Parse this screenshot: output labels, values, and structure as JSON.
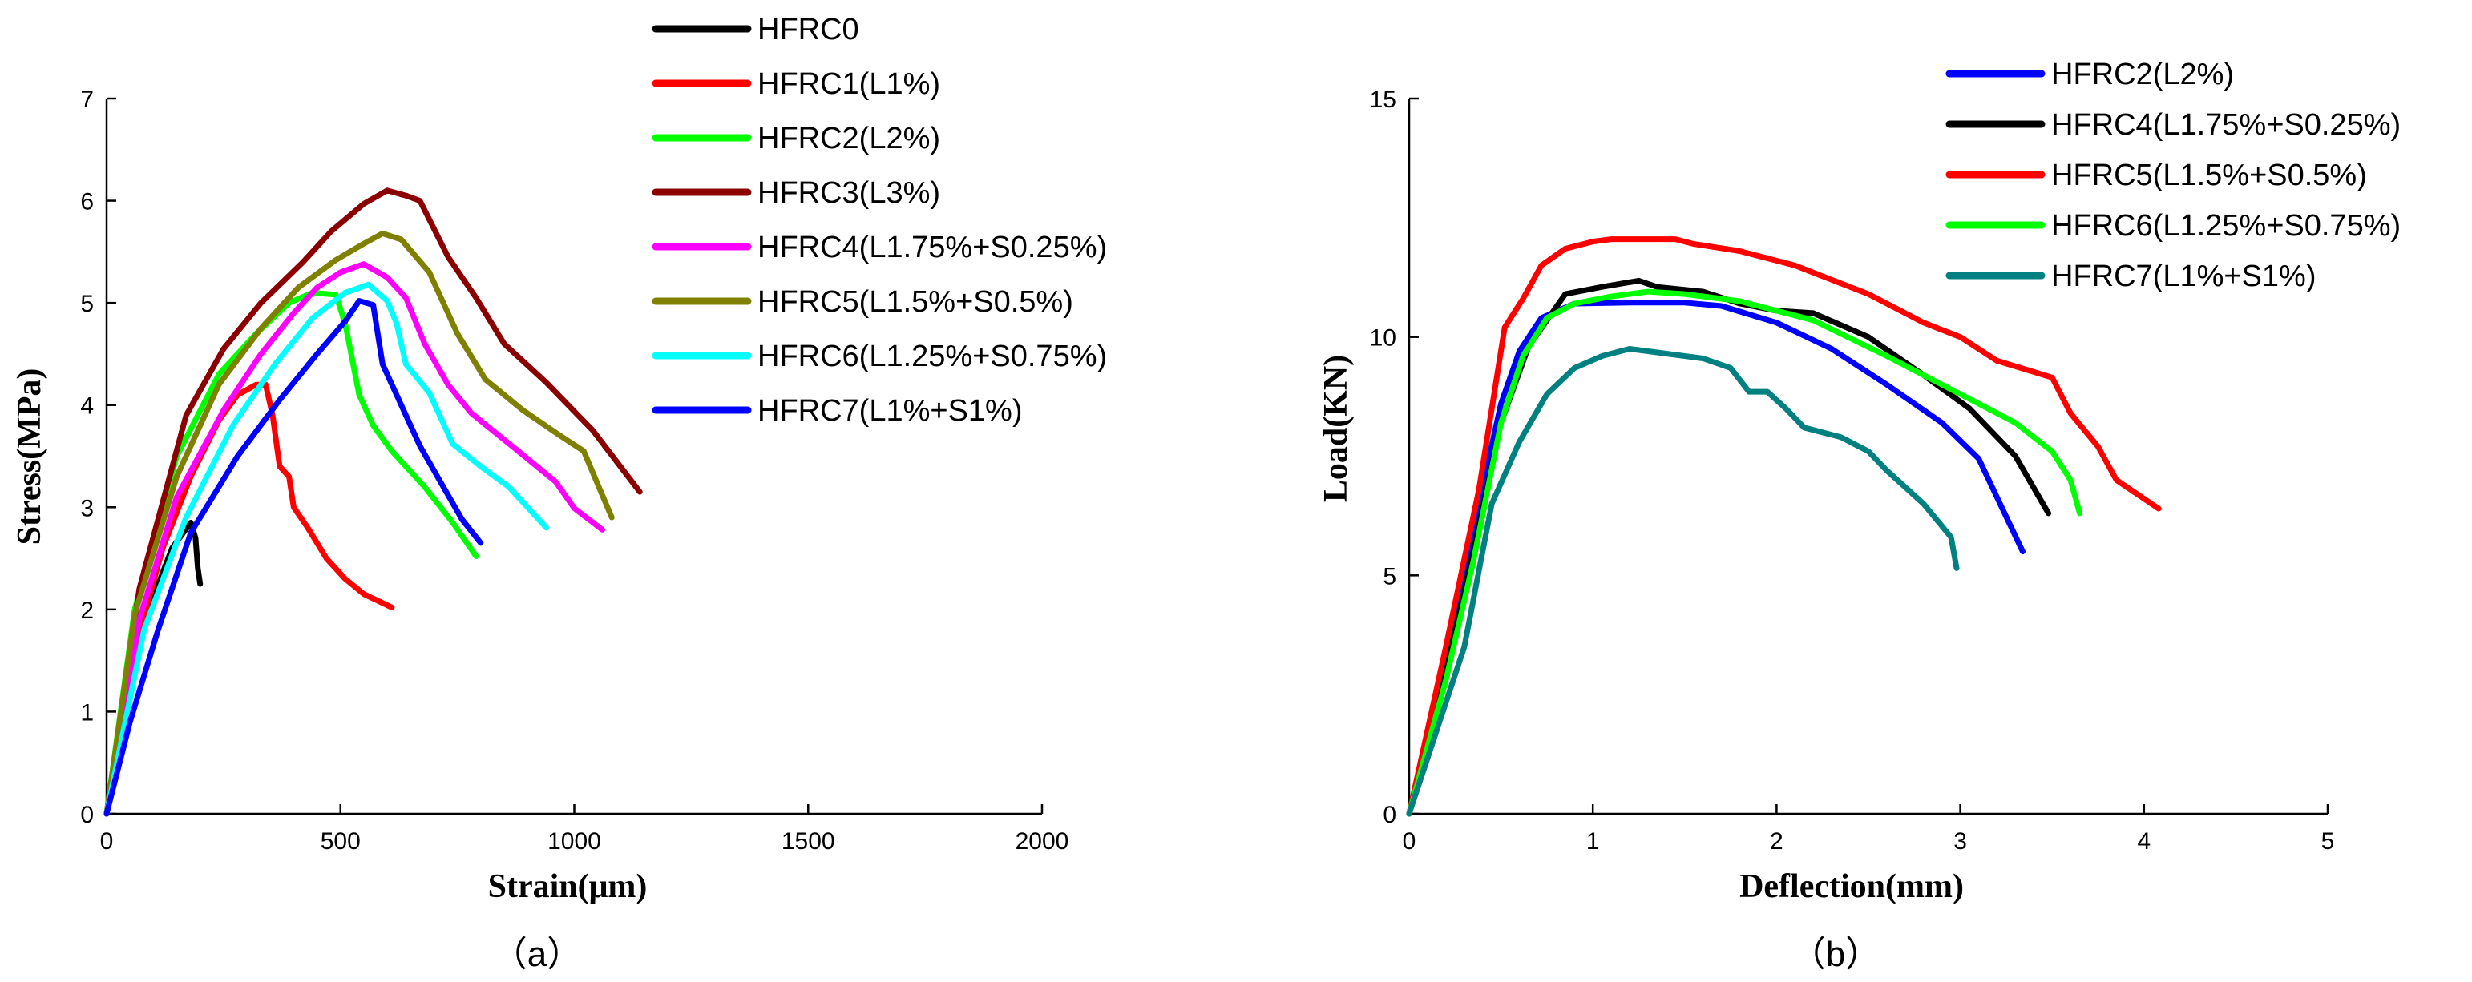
{
  "chart_data": [
    {
      "type": "line",
      "caption": "（a）",
      "xlabel": "Strain(μm)",
      "ylabel": "Stress(MPa)",
      "xlim": [
        0,
        2000
      ],
      "ylim": [
        0,
        7
      ],
      "xticks": [
        0,
        500,
        1000,
        1500,
        2000
      ],
      "yticks": [
        0,
        1,
        2,
        3,
        4,
        5,
        6,
        7
      ],
      "grid": false,
      "legend_position": "top-right",
      "series": [
        {
          "name": "HFRC0",
          "color": "#000000",
          "points": [
            [
              0,
              0
            ],
            [
              40,
              1.2
            ],
            [
              90,
              2.0
            ],
            [
              140,
              2.6
            ],
            [
              180,
              2.85
            ],
            [
              190,
              2.7
            ],
            [
              195,
              2.4
            ],
            [
              200,
              2.25
            ]
          ]
        },
        {
          "name": "HFRC1(L1%)",
          "color": "#ff0000",
          "points": [
            [
              0,
              0
            ],
            [
              60,
              1.6
            ],
            [
              120,
              2.6
            ],
            [
              180,
              3.3
            ],
            [
              240,
              3.85
            ],
            [
              280,
              4.1
            ],
            [
              320,
              4.2
            ],
            [
              340,
              4.2
            ],
            [
              355,
              3.9
            ],
            [
              370,
              3.4
            ],
            [
              390,
              3.3
            ],
            [
              400,
              3.0
            ],
            [
              430,
              2.8
            ],
            [
              470,
              2.5
            ],
            [
              510,
              2.3
            ],
            [
              550,
              2.15
            ],
            [
              610,
              2.02
            ]
          ]
        },
        {
          "name": "HFRC2(L2%)",
          "color": "#00ff00",
          "points": [
            [
              0,
              0
            ],
            [
              60,
              2.0
            ],
            [
              150,
              3.5
            ],
            [
              240,
              4.3
            ],
            [
              320,
              4.7
            ],
            [
              390,
              5.0
            ],
            [
              440,
              5.1
            ],
            [
              490,
              5.08
            ],
            [
              510,
              4.8
            ],
            [
              540,
              4.1
            ],
            [
              570,
              3.8
            ],
            [
              610,
              3.55
            ],
            [
              680,
              3.2
            ],
            [
              740,
              2.85
            ],
            [
              790,
              2.52
            ]
          ]
        },
        {
          "name": "HFRC3(L3%)",
          "color": "#8b0000",
          "points": [
            [
              0,
              0
            ],
            [
              70,
              2.2
            ],
            [
              170,
              3.9
            ],
            [
              250,
              4.55
            ],
            [
              330,
              5.0
            ],
            [
              420,
              5.4
            ],
            [
              480,
              5.7
            ],
            [
              550,
              5.97
            ],
            [
              600,
              6.1
            ],
            [
              640,
              6.05
            ],
            [
              670,
              6.0
            ],
            [
              730,
              5.45
            ],
            [
              790,
              5.05
            ],
            [
              850,
              4.6
            ],
            [
              940,
              4.22
            ],
            [
              1040,
              3.75
            ],
            [
              1140,
              3.15
            ]
          ]
        },
        {
          "name": "HFRC4(L1.75%+S0.25%)",
          "color": "#ff00ff",
          "points": [
            [
              0,
              0
            ],
            [
              70,
              1.9
            ],
            [
              150,
              3.1
            ],
            [
              250,
              3.95
            ],
            [
              330,
              4.5
            ],
            [
              400,
              4.9
            ],
            [
              450,
              5.15
            ],
            [
              500,
              5.3
            ],
            [
              550,
              5.38
            ],
            [
              600,
              5.25
            ],
            [
              640,
              5.05
            ],
            [
              680,
              4.6
            ],
            [
              730,
              4.2
            ],
            [
              780,
              3.92
            ],
            [
              880,
              3.55
            ],
            [
              960,
              3.25
            ],
            [
              1000,
              2.99
            ],
            [
              1060,
              2.78
            ]
          ]
        },
        {
          "name": "HFRC5(L1.5%+S0.5%)",
          "color": "#808000",
          "points": [
            [
              0,
              0
            ],
            [
              60,
              1.95
            ],
            [
              150,
              3.3
            ],
            [
              240,
              4.2
            ],
            [
              330,
              4.75
            ],
            [
              410,
              5.15
            ],
            [
              490,
              5.42
            ],
            [
              550,
              5.58
            ],
            [
              590,
              5.68
            ],
            [
              630,
              5.62
            ],
            [
              690,
              5.3
            ],
            [
              750,
              4.7
            ],
            [
              810,
              4.25
            ],
            [
              890,
              3.95
            ],
            [
              970,
              3.7
            ],
            [
              1020,
              3.55
            ],
            [
              1080,
              2.9
            ]
          ]
        },
        {
          "name": "HFRC6(L1.25%+S0.75%)",
          "color": "#00ffff",
          "points": [
            [
              0,
              0
            ],
            [
              80,
              1.8
            ],
            [
              170,
              2.9
            ],
            [
              270,
              3.8
            ],
            [
              360,
              4.4
            ],
            [
              440,
              4.85
            ],
            [
              510,
              5.1
            ],
            [
              560,
              5.18
            ],
            [
              600,
              5.02
            ],
            [
              620,
              4.8
            ],
            [
              640,
              4.4
            ],
            [
              690,
              4.12
            ],
            [
              740,
              3.62
            ],
            [
              800,
              3.4
            ],
            [
              860,
              3.2
            ],
            [
              940,
              2.8
            ]
          ]
        },
        {
          "name": "HFRC7(L1%+S1%)",
          "color": "#0000ff",
          "points": [
            [
              0,
              0
            ],
            [
              50,
              0.9
            ],
            [
              110,
              1.8
            ],
            [
              180,
              2.75
            ],
            [
              280,
              3.5
            ],
            [
              370,
              4.05
            ],
            [
              450,
              4.5
            ],
            [
              510,
              4.82
            ],
            [
              540,
              5.02
            ],
            [
              570,
              4.98
            ],
            [
              590,
              4.4
            ],
            [
              630,
              4.0
            ],
            [
              670,
              3.6
            ],
            [
              720,
              3.2
            ],
            [
              760,
              2.88
            ],
            [
              800,
              2.65
            ]
          ]
        }
      ]
    },
    {
      "type": "line",
      "caption": "（b）",
      "xlabel": "Deflection(mm)",
      "ylabel": "Load(KN)",
      "xlim": [
        0,
        5
      ],
      "ylim": [
        0,
        15
      ],
      "xticks": [
        0,
        1,
        2,
        3,
        4,
        5
      ],
      "yticks": [
        0,
        5,
        10,
        15
      ],
      "grid": false,
      "legend_position": "top-right",
      "series": [
        {
          "name": "HFRC2(L2%)",
          "color": "#0000ff",
          "points": [
            [
              0,
              0
            ],
            [
              0.2,
              3.2
            ],
            [
              0.35,
              6.0
            ],
            [
              0.5,
              8.6
            ],
            [
              0.6,
              9.7
            ],
            [
              0.72,
              10.4
            ],
            [
              0.9,
              10.7
            ],
            [
              1.2,
              10.72
            ],
            [
              1.5,
              10.72
            ],
            [
              1.7,
              10.65
            ],
            [
              2.0,
              10.3
            ],
            [
              2.3,
              9.75
            ],
            [
              2.6,
              9.0
            ],
            [
              2.9,
              8.2
            ],
            [
              3.1,
              7.45
            ],
            [
              3.34,
              5.5
            ]
          ]
        },
        {
          "name": "HFRC4(L1.75%+S0.25%)",
          "color": "#000000",
          "points": [
            [
              0,
              0
            ],
            [
              0.2,
              3.0
            ],
            [
              0.35,
              5.5
            ],
            [
              0.5,
              8.2
            ],
            [
              0.65,
              9.8
            ],
            [
              0.85,
              10.9
            ],
            [
              1.05,
              11.05
            ],
            [
              1.25,
              11.18
            ],
            [
              1.35,
              11.05
            ],
            [
              1.6,
              10.95
            ],
            [
              1.8,
              10.7
            ],
            [
              2.0,
              10.55
            ],
            [
              2.2,
              10.5
            ],
            [
              2.5,
              10.0
            ],
            [
              2.8,
              9.2
            ],
            [
              3.05,
              8.5
            ],
            [
              3.3,
              7.5
            ],
            [
              3.48,
              6.3
            ]
          ]
        },
        {
          "name": "HFRC5(L1.5%+S0.5%)",
          "color": "#ff0000",
          "points": [
            [
              0,
              0
            ],
            [
              0.2,
              3.5
            ],
            [
              0.38,
              6.8
            ],
            [
              0.52,
              10.2
            ],
            [
              0.62,
              10.8
            ],
            [
              0.72,
              11.5
            ],
            [
              0.85,
              11.85
            ],
            [
              1.0,
              12.0
            ],
            [
              1.1,
              12.05
            ],
            [
              1.45,
              12.05
            ],
            [
              1.55,
              11.95
            ],
            [
              1.8,
              11.8
            ],
            [
              2.1,
              11.5
            ],
            [
              2.5,
              10.9
            ],
            [
              2.8,
              10.3
            ],
            [
              3.0,
              10.0
            ],
            [
              3.2,
              9.5
            ],
            [
              3.5,
              9.15
            ],
            [
              3.6,
              8.4
            ],
            [
              3.75,
              7.7
            ],
            [
              3.85,
              7.0
            ],
            [
              4.08,
              6.4
            ]
          ]
        },
        {
          "name": "HFRC6(L1.25%+S0.75%)",
          "color": "#00ff00",
          "points": [
            [
              0,
              0
            ],
            [
              0.2,
              2.8
            ],
            [
              0.35,
              5.3
            ],
            [
              0.5,
              8.2
            ],
            [
              0.62,
              9.6
            ],
            [
              0.75,
              10.4
            ],
            [
              0.9,
              10.7
            ],
            [
              1.1,
              10.85
            ],
            [
              1.3,
              10.95
            ],
            [
              1.5,
              10.9
            ],
            [
              1.8,
              10.75
            ],
            [
              2.2,
              10.35
            ],
            [
              2.6,
              9.6
            ],
            [
              2.9,
              9.0
            ],
            [
              3.1,
              8.6
            ],
            [
              3.3,
              8.2
            ],
            [
              3.5,
              7.6
            ],
            [
              3.6,
              7.0
            ],
            [
              3.65,
              6.3
            ]
          ]
        },
        {
          "name": "HFRC7(L1%+S1%)",
          "color": "#008080",
          "points": [
            [
              0,
              0
            ],
            [
              0.3,
              3.5
            ],
            [
              0.45,
              6.5
            ],
            [
              0.6,
              7.8
            ],
            [
              0.75,
              8.8
            ],
            [
              0.9,
              9.35
            ],
            [
              1.05,
              9.6
            ],
            [
              1.2,
              9.75
            ],
            [
              1.4,
              9.65
            ],
            [
              1.6,
              9.55
            ],
            [
              1.75,
              9.35
            ],
            [
              1.85,
              8.85
            ],
            [
              1.95,
              8.85
            ],
            [
              2.05,
              8.5
            ],
            [
              2.15,
              8.1
            ],
            [
              2.35,
              7.9
            ],
            [
              2.5,
              7.6
            ],
            [
              2.6,
              7.2
            ],
            [
              2.8,
              6.5
            ],
            [
              2.95,
              5.8
            ],
            [
              2.98,
              5.15
            ]
          ]
        }
      ]
    }
  ]
}
